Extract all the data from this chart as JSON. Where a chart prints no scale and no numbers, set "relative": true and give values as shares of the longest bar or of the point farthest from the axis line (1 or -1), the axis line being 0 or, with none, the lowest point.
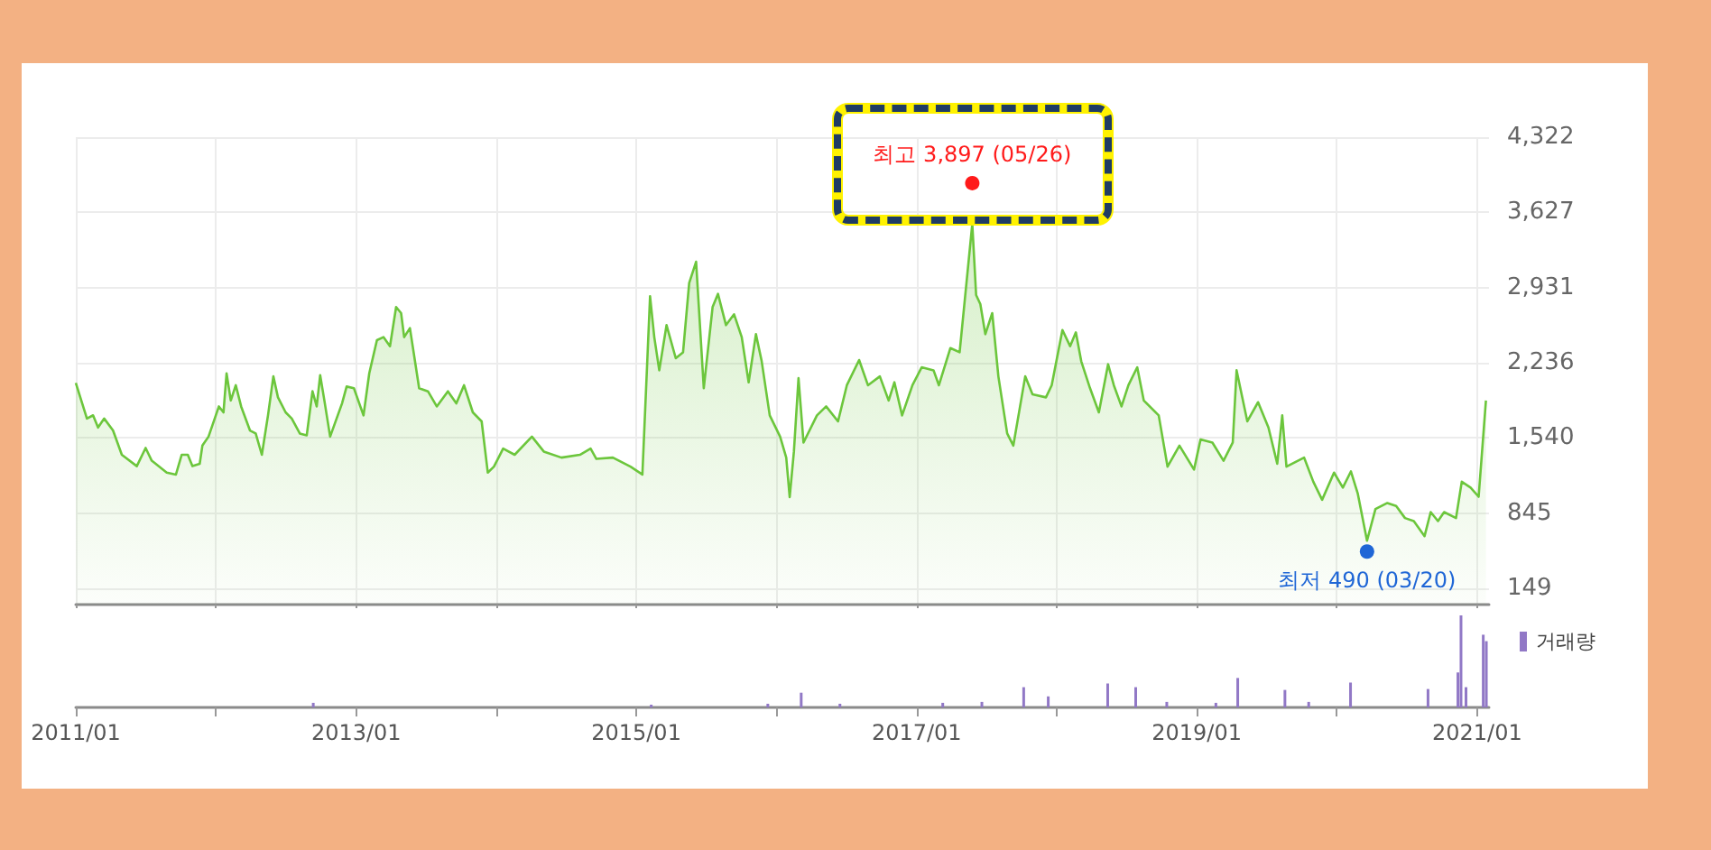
{
  "chart_data": [
    {
      "type": "area",
      "xlim": [
        "2011-01-01",
        "2021-02-01"
      ],
      "xticks": [
        {
          "value": "2011-01",
          "label": null
        },
        {
          "value": "2012-01",
          "label": null
        },
        {
          "value": "2013-01",
          "label": null
        },
        {
          "value": "2014-01",
          "label": null
        },
        {
          "value": "2015-01",
          "label": null
        },
        {
          "value": "2016-01",
          "label": null
        },
        {
          "value": "2017-01",
          "label": null
        },
        {
          "value": "2018-01",
          "label": null
        },
        {
          "value": "2019-01",
          "label": null
        },
        {
          "value": "2020-01",
          "label": null
        },
        {
          "value": "2021-01",
          "label": null
        }
      ],
      "ylim": [
        0,
        4322
      ],
      "yticks": [
        {
          "value": 4322,
          "label": "4,322"
        },
        {
          "value": 3627,
          "label": "3,627"
        },
        {
          "value": 2931,
          "label": "2,931"
        },
        {
          "value": 2236,
          "label": "2,236"
        },
        {
          "value": 1540,
          "label": "1,540"
        },
        845,
        149
      ],
      "grid": true,
      "tick_labels": "y",
      "marker": "none",
      "x": [
        "2011-01-01",
        "2011-01-30",
        "2011-02-15",
        "2011-02-28",
        "2011-03-16",
        "2011-04-08",
        "2011-05-01",
        "2011-06-09",
        "2011-07-02",
        "2011-07-18",
        "2011-08-26",
        "2011-09-19",
        "2011-10-04",
        "2011-10-20",
        "2011-11-01",
        "2011-11-20",
        "2011-11-27",
        "2011-12-13",
        "2012-01-09",
        "2012-01-21",
        "2012-01-29",
        "2012-02-09",
        "2012-02-22",
        "2012-03-07",
        "2012-03-30",
        "2012-04-14",
        "2012-04-30",
        "2012-05-16",
        "2012-05-30",
        "2012-06-11",
        "2012-07-01",
        "2012-07-17",
        "2012-08-07",
        "2012-08-25",
        "2012-09-09",
        "2012-09-20",
        "2012-09-29",
        "2012-10-10",
        "2012-10-25",
        "2012-11-25",
        "2012-12-07",
        "2012-12-26",
        "2013-01-20",
        "2013-02-04",
        "2013-02-24",
        "2013-03-13",
        "2013-03-30",
        "2013-04-15",
        "2013-04-28",
        "2013-05-06",
        "2013-05-21",
        "2013-06-14",
        "2013-07-07",
        "2013-07-30",
        "2013-08-28",
        "2013-09-19",
        "2013-10-09",
        "2013-11-01",
        "2013-11-24",
        "2013-12-10",
        "2013-12-26",
        "2014-01-19",
        "2014-02-18",
        "2014-04-04",
        "2014-05-05",
        "2014-06-20",
        "2014-08-07",
        "2014-09-04",
        "2014-09-19",
        "2014-11-01",
        "2014-12-17",
        "2015-01-17",
        "2015-02-06",
        "2015-02-17",
        "2015-03-02",
        "2015-03-21",
        "2015-04-14",
        "2015-05-03",
        "2015-05-19",
        "2015-06-06",
        "2015-06-26",
        "2015-07-19",
        "2015-08-02",
        "2015-08-23",
        "2015-09-13",
        "2015-10-03",
        "2015-10-21",
        "2015-11-09",
        "2015-11-24",
        "2015-12-15",
        "2016-01-11",
        "2016-01-27",
        "2016-02-05",
        "2016-02-16",
        "2016-02-28",
        "2016-03-12",
        "2016-04-16",
        "2016-05-10",
        "2016-06-10",
        "2016-07-03",
        "2016-08-04",
        "2016-08-27",
        "2016-09-27",
        "2016-10-20",
        "2016-11-04",
        "2016-11-24",
        "2016-12-21",
        "2017-01-14",
        "2017-02-14",
        "2017-02-28",
        "2017-03-30",
        "2017-04-23",
        "2017-05-26",
        "2017-06-05",
        "2017-06-16",
        "2017-06-29",
        "2017-07-17",
        "2017-08-02",
        "2017-08-25",
        "2017-09-10",
        "2017-10-11",
        "2017-10-30",
        "2017-12-04",
        "2017-12-19",
        "2018-01-16",
        "2018-02-05",
        "2018-02-20",
        "2018-03-06",
        "2018-03-29",
        "2018-04-21",
        "2018-05-15",
        "2018-05-30",
        "2018-06-19",
        "2018-07-07",
        "2018-07-30",
        "2018-08-16",
        "2018-09-24",
        "2018-10-17",
        "2018-11-17",
        "2018-12-25",
        "2019-01-11",
        "2019-02-11",
        "2019-03-12",
        "2019-04-05",
        "2019-04-15",
        "2019-05-13",
        "2019-06-10",
        "2019-07-07",
        "2019-07-30",
        "2019-08-12",
        "2019-08-23",
        "2019-10-08",
        "2019-11-01",
        "2019-11-24",
        "2019-12-25",
        "2020-01-17",
        "2020-02-07",
        "2020-02-25",
        "2020-03-20",
        "2020-04-11",
        "2020-05-12",
        "2020-06-04",
        "2020-06-27",
        "2020-07-20",
        "2020-08-17",
        "2020-09-02",
        "2020-09-21",
        "2020-10-07",
        "2020-11-07",
        "2020-11-22",
        "2020-12-15",
        "2021-01-05",
        "2021-01-24"
      ],
      "series": [
        {
          "color": "#6cc63c",
          "values": [
            2050,
            1720,
            1750,
            1637,
            1720,
            1610,
            1385,
            1280,
            1448,
            1330,
            1220,
            1202,
            1385,
            1385,
            1280,
            1302,
            1470,
            1553,
            1832,
            1777,
            2138,
            1887,
            2028,
            1832,
            1610,
            1582,
            1385,
            1749,
            2110,
            1916,
            1777,
            1720,
            1582,
            1565,
            1972,
            1832,
            2121,
            1887,
            1553,
            1860,
            2016,
            2000,
            1749,
            2138,
            2445,
            2473,
            2389,
            2751,
            2695,
            2473,
            2556,
            2000,
            1972,
            1832,
            1972,
            1860,
            2028,
            1777,
            1694,
            1220,
            1275,
            1442,
            1385,
            1553,
            1415,
            1359,
            1385,
            1442,
            1347,
            1359,
            1275,
            1202,
            2851,
            2473,
            2166,
            2584,
            2278,
            2333,
            2973,
            3170,
            2000,
            2751,
            2873,
            2584,
            2684,
            2473,
            2055,
            2500,
            2250,
            1749,
            1553,
            1359,
            993,
            1415,
            2094,
            1498,
            1749,
            1832,
            1694,
            2028,
            2261,
            2028,
            2110,
            1887,
            2055,
            1749,
            2028,
            2194,
            2166,
            2028,
            2372,
            2333,
            3520,
            2862,
            2779,
            2500,
            2695,
            2110,
            1582,
            1470,
            2110,
            1944,
            1916,
            2028,
            2539,
            2389,
            2517,
            2250,
            2000,
            1777,
            2222,
            2028,
            1832,
            2028,
            2194,
            1887,
            1749,
            1275,
            1470,
            1248,
            1526,
            1498,
            1330,
            1498,
            2166,
            1694,
            1871,
            1637,
            1302,
            1749,
            1275,
            1359,
            1136,
            969,
            1220,
            1081,
            1231,
            1025,
            590,
            883,
            939,
            911,
            800,
            772,
            633,
            855,
            772,
            855,
            800,
            1136,
            1081,
            997,
            1887
          ]
        }
      ],
      "annotations": [
        {
          "text": "최고 3,897 (05/26)",
          "x": "2017-05-26",
          "y": 3897
        },
        {
          "text": "최저 490 (03/20)",
          "x": "2020-03-20",
          "y": 490
        }
      ]
    },
    {
      "type": "bar",
      "relative": true,
      "legend": "top right",
      "xlim": [
        "2011-01-01",
        "2021-02-01"
      ],
      "xticks": [
        {
          "value": "2011-01",
          "label": "2011/01"
        },
        {
          "value": "2012-01",
          "label": null
        },
        {
          "value": "2013-01",
          "label": "2013/01"
        },
        {
          "value": "2014-01",
          "label": null
        },
        {
          "value": "2015-01",
          "label": "2015/01"
        },
        {
          "value": "2016-01",
          "label": null
        },
        {
          "value": "2017-01",
          "label": "2017/01"
        },
        {
          "value": "2018-01",
          "label": null
        },
        {
          "value": "2019-01",
          "label": "2019/01"
        },
        {
          "value": "2020-01",
          "label": null
        },
        {
          "value": "2021-01",
          "label": "2021/01"
        }
      ],
      "x": [
        "2012-09-11",
        "2015-02-09",
        "2015-12-10",
        "2016-03-06",
        "2016-06-15",
        "2017-03-10",
        "2017-06-20",
        "2017-10-07",
        "2017-12-10",
        "2018-05-14",
        "2018-07-26",
        "2018-10-15",
        "2019-02-20",
        "2019-04-18",
        "2019-08-19",
        "2019-10-20",
        "2020-02-06",
        "2020-08-26",
        "2020-11-12",
        "2020-11-20",
        "2020-12-03",
        "2021-01-17",
        "2021-01-25"
      ],
      "series": [
        {
          "name": "거래량",
          "color": "#9178c6",
          "values": [
            0.05,
            0.03,
            0.04,
            0.16,
            0.04,
            0.05,
            0.06,
            0.22,
            0.12,
            0.26,
            0.22,
            0.06,
            0.05,
            0.32,
            0.19,
            0.06,
            0.27,
            0.2,
            0.38,
            1,
            0.22,
            0.79,
            0.72
          ]
        }
      ]
    }
  ]
}
